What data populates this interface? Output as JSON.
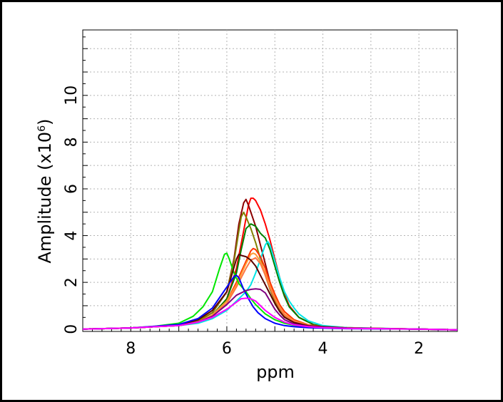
{
  "chart_data": {
    "type": "line",
    "xlabel": "ppm",
    "ylabel": "Amplitude (x10",
    "ylabel_exponent": "6",
    "ylabel_suffix": ")",
    "xlim": [
      9.0,
      1.2
    ],
    "ylim": [
      -0.1,
      12.8
    ],
    "x_reversed": true,
    "x_ticks": [
      8,
      6,
      4,
      2
    ],
    "x_tick_labels": [
      "8",
      "6",
      "4",
      "2"
    ],
    "y_ticks": [
      0,
      2,
      4,
      6,
      8,
      10
    ],
    "y_tick_labels": [
      "0",
      "2",
      "4",
      "6",
      "8",
      "10"
    ],
    "grid": true,
    "legend": "none",
    "series": [
      {
        "color": "#ff0000",
        "x": [
          9.0,
          8.0,
          7.5,
          7.0,
          6.6,
          6.3,
          6.0,
          5.8,
          5.65,
          5.55,
          5.5,
          5.45,
          5.4,
          5.3,
          5.2,
          5.1,
          5.0,
          4.9,
          4.8,
          4.7,
          4.5,
          4.2,
          4.0,
          3.5,
          3.0,
          2.0,
          1.2
        ],
        "y": [
          0.0,
          0.05,
          0.1,
          0.15,
          0.3,
          0.6,
          1.3,
          2.6,
          4.2,
          5.3,
          5.6,
          5.6,
          5.5,
          5.1,
          4.5,
          3.8,
          3.0,
          2.2,
          1.5,
          1.0,
          0.5,
          0.2,
          0.12,
          0.06,
          0.03,
          0.0,
          -0.03
        ]
      },
      {
        "color": "#8b0000",
        "x": [
          9.0,
          8.0,
          7.5,
          7.0,
          6.6,
          6.3,
          6.0,
          5.85,
          5.75,
          5.65,
          5.6,
          5.55,
          5.5,
          5.4,
          5.3,
          5.2,
          5.1,
          5.0,
          4.9,
          4.8,
          4.6,
          4.3,
          4.0,
          3.5,
          2.0,
          1.2
        ],
        "y": [
          0.0,
          0.05,
          0.1,
          0.18,
          0.35,
          0.7,
          1.6,
          3.0,
          4.5,
          5.4,
          5.55,
          5.3,
          5.0,
          4.4,
          3.6,
          2.8,
          2.0,
          1.4,
          0.9,
          0.6,
          0.3,
          0.15,
          0.1,
          0.05,
          0.0,
          -0.03
        ]
      },
      {
        "color": "#808000",
        "x": [
          9.0,
          8.0,
          7.5,
          7.0,
          6.6,
          6.3,
          6.0,
          5.85,
          5.75,
          5.7,
          5.65,
          5.6,
          5.5,
          5.4,
          5.3,
          5.2,
          5.1,
          5.0,
          4.9,
          4.8,
          4.6,
          4.3,
          4.0,
          3.5,
          2.0,
          1.2
        ],
        "y": [
          0.0,
          0.05,
          0.1,
          0.18,
          0.35,
          0.7,
          1.6,
          2.9,
          4.2,
          4.8,
          5.0,
          4.8,
          4.3,
          3.7,
          3.0,
          2.3,
          1.7,
          1.2,
          0.8,
          0.55,
          0.3,
          0.15,
          0.1,
          0.05,
          0.0,
          -0.03
        ]
      },
      {
        "color": "#008000",
        "x": [
          9.0,
          8.0,
          7.5,
          7.0,
          6.6,
          6.3,
          6.0,
          5.8,
          5.7,
          5.6,
          5.5,
          5.4,
          5.3,
          5.2,
          5.1,
          5.0,
          4.9,
          4.8,
          4.7,
          4.5,
          4.2,
          4.0,
          3.5,
          2.0,
          1.2
        ],
        "y": [
          0.0,
          0.05,
          0.1,
          0.15,
          0.3,
          0.6,
          1.3,
          2.4,
          3.4,
          4.3,
          4.5,
          4.4,
          4.1,
          3.9,
          3.4,
          2.7,
          2.0,
          1.4,
          0.95,
          0.5,
          0.2,
          0.12,
          0.06,
          0.0,
          -0.03
        ]
      },
      {
        "color": "#00e5e5",
        "x": [
          9.0,
          8.0,
          7.5,
          7.0,
          6.6,
          6.3,
          6.0,
          5.8,
          5.6,
          5.5,
          5.4,
          5.3,
          5.2,
          5.15,
          5.1,
          5.0,
          4.9,
          4.8,
          4.7,
          4.6,
          4.5,
          4.3,
          4.0,
          3.5,
          2.0,
          1.2
        ],
        "y": [
          0.0,
          0.05,
          0.1,
          0.15,
          0.25,
          0.45,
          0.8,
          1.2,
          1.6,
          1.9,
          2.4,
          3.0,
          3.6,
          3.75,
          3.6,
          2.9,
          2.2,
          1.6,
          1.2,
          0.9,
          0.65,
          0.35,
          0.15,
          0.06,
          0.0,
          -0.03
        ]
      },
      {
        "color": "#ff3300",
        "x": [
          9.0,
          8.0,
          7.5,
          7.0,
          6.6,
          6.3,
          6.0,
          5.8,
          5.6,
          5.5,
          5.45,
          5.4,
          5.3,
          5.2,
          5.1,
          5.0,
          4.9,
          4.8,
          4.6,
          4.3,
          4.0,
          3.5,
          2.0,
          1.2
        ],
        "y": [
          0.0,
          0.05,
          0.1,
          0.15,
          0.3,
          0.6,
          1.2,
          2.0,
          2.9,
          3.35,
          3.45,
          3.4,
          3.1,
          2.6,
          2.0,
          1.5,
          1.05,
          0.75,
          0.4,
          0.18,
          0.1,
          0.05,
          0.0,
          -0.03
        ]
      },
      {
        "color": "#ff9933",
        "x": [
          9.0,
          8.0,
          7.5,
          7.0,
          6.6,
          6.3,
          6.0,
          5.8,
          5.6,
          5.5,
          5.45,
          5.4,
          5.3,
          5.2,
          5.1,
          5.0,
          4.9,
          4.8,
          4.6,
          4.3,
          4.0,
          3.5,
          2.0,
          1.2
        ],
        "y": [
          0.0,
          0.05,
          0.1,
          0.15,
          0.3,
          0.6,
          1.2,
          1.9,
          2.8,
          3.2,
          3.25,
          3.2,
          2.9,
          2.4,
          1.85,
          1.35,
          0.95,
          0.65,
          0.35,
          0.16,
          0.1,
          0.05,
          0.0,
          -0.03
        ]
      },
      {
        "color": "#ff7744",
        "x": [
          9.0,
          8.0,
          7.5,
          7.0,
          6.6,
          6.3,
          6.0,
          5.8,
          5.6,
          5.5,
          5.4,
          5.3,
          5.2,
          5.1,
          5.0,
          4.9,
          4.8,
          4.6,
          4.3,
          4.0,
          3.5,
          2.0,
          1.2
        ],
        "y": [
          0.0,
          0.05,
          0.1,
          0.15,
          0.3,
          0.55,
          1.1,
          1.8,
          2.6,
          2.95,
          3.05,
          2.8,
          2.3,
          1.75,
          1.3,
          0.9,
          0.6,
          0.32,
          0.15,
          0.1,
          0.05,
          0.0,
          -0.03
        ]
      },
      {
        "color": "#00e600",
        "x": [
          9.0,
          8.0,
          7.5,
          7.0,
          6.7,
          6.5,
          6.3,
          6.15,
          6.05,
          6.0,
          5.95,
          5.85,
          5.75,
          5.6,
          5.5,
          5.4,
          5.3,
          5.2,
          5.0,
          4.8,
          4.5,
          4.0,
          3.5,
          2.0,
          1.2
        ],
        "y": [
          0.0,
          0.05,
          0.12,
          0.25,
          0.55,
          0.95,
          1.6,
          2.6,
          3.2,
          3.25,
          3.0,
          2.4,
          1.95,
          1.6,
          1.3,
          1.05,
          0.85,
          0.65,
          0.4,
          0.25,
          0.12,
          0.06,
          0.03,
          0.0,
          -0.03
        ]
      },
      {
        "color": "#5a0000",
        "x": [
          9.0,
          8.0,
          7.5,
          7.0,
          6.6,
          6.3,
          6.0,
          5.9,
          5.8,
          5.75,
          5.7,
          5.6,
          5.5,
          5.4,
          5.3,
          5.2,
          5.1,
          5.0,
          4.9,
          4.8,
          4.6,
          4.3,
          4.0,
          3.5,
          2.0,
          1.2
        ],
        "y": [
          0.0,
          0.05,
          0.1,
          0.18,
          0.4,
          0.8,
          1.6,
          2.3,
          3.0,
          3.2,
          3.15,
          3.1,
          2.95,
          2.7,
          2.3,
          1.9,
          1.5,
          1.1,
          0.75,
          0.5,
          0.28,
          0.14,
          0.1,
          0.05,
          0.0,
          -0.03
        ]
      },
      {
        "color": "#0000ff",
        "x": [
          9.0,
          8.0,
          7.5,
          7.0,
          6.6,
          6.3,
          6.1,
          5.95,
          5.85,
          5.8,
          5.75,
          5.65,
          5.55,
          5.45,
          5.35,
          5.2,
          5.0,
          4.8,
          4.6,
          4.3,
          4.0,
          3.5,
          2.0,
          1.2
        ],
        "y": [
          0.0,
          0.05,
          0.12,
          0.2,
          0.45,
          0.9,
          1.5,
          1.95,
          2.25,
          2.3,
          2.2,
          1.7,
          1.3,
          0.95,
          0.7,
          0.45,
          0.25,
          0.15,
          0.1,
          0.06,
          0.04,
          0.02,
          0.0,
          -0.03
        ]
      },
      {
        "color": "#800080",
        "x": [
          9.0,
          8.0,
          7.5,
          7.0,
          6.6,
          6.3,
          6.0,
          5.8,
          5.6,
          5.5,
          5.4,
          5.3,
          5.2,
          5.1,
          5.0,
          4.9,
          4.8,
          4.6,
          4.3,
          4.0,
          3.5,
          2.0,
          1.2
        ],
        "y": [
          0.0,
          0.05,
          0.1,
          0.15,
          0.3,
          0.55,
          1.05,
          1.45,
          1.65,
          1.7,
          1.72,
          1.7,
          1.55,
          1.2,
          0.85,
          0.6,
          0.4,
          0.22,
          0.12,
          0.08,
          0.04,
          0.0,
          -0.03
        ]
      },
      {
        "color": "#ff00ff",
        "x": [
          9.0,
          8.0,
          7.5,
          7.0,
          6.6,
          6.3,
          6.0,
          5.8,
          5.7,
          5.6,
          5.5,
          5.4,
          5.3,
          5.2,
          5.0,
          4.8,
          4.6,
          4.3,
          4.0,
          3.5,
          2.0,
          1.2
        ],
        "y": [
          0.0,
          0.05,
          0.1,
          0.15,
          0.3,
          0.5,
          0.85,
          1.15,
          1.3,
          1.32,
          1.3,
          1.2,
          1.0,
          0.8,
          0.5,
          0.3,
          0.18,
          0.1,
          0.06,
          0.03,
          0.0,
          -0.03
        ]
      }
    ]
  }
}
